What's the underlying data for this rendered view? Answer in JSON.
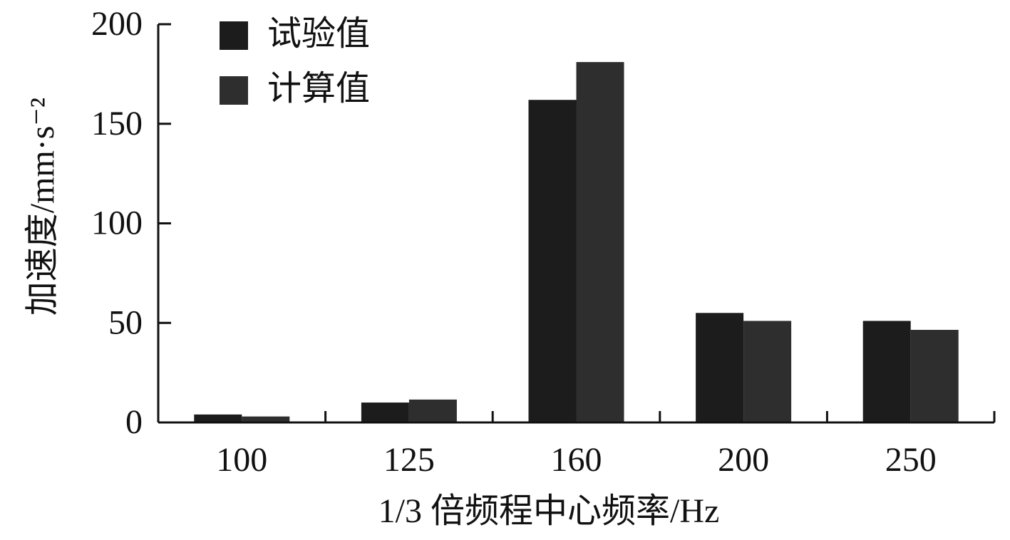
{
  "chart_data": {
    "type": "bar",
    "x_label": "1/3 倍频程中心频率/Hz",
    "y_label": "加速度/mm·s⁻²",
    "categories": [
      "100",
      "125",
      "160",
      "200",
      "250"
    ],
    "series": [
      {
        "name": "试验值",
        "color": "#1c1c1c",
        "values": [
          4,
          10,
          162,
          55,
          51
        ]
      },
      {
        "name": "计算值",
        "color": "#2e2e2e",
        "values": [
          3,
          11.5,
          181,
          51,
          46.5
        ]
      }
    ],
    "ylim": [
      0,
      200
    ],
    "yticks": [
      0,
      50,
      100,
      150,
      200
    ],
    "grid": false,
    "legend": "upper left"
  }
}
